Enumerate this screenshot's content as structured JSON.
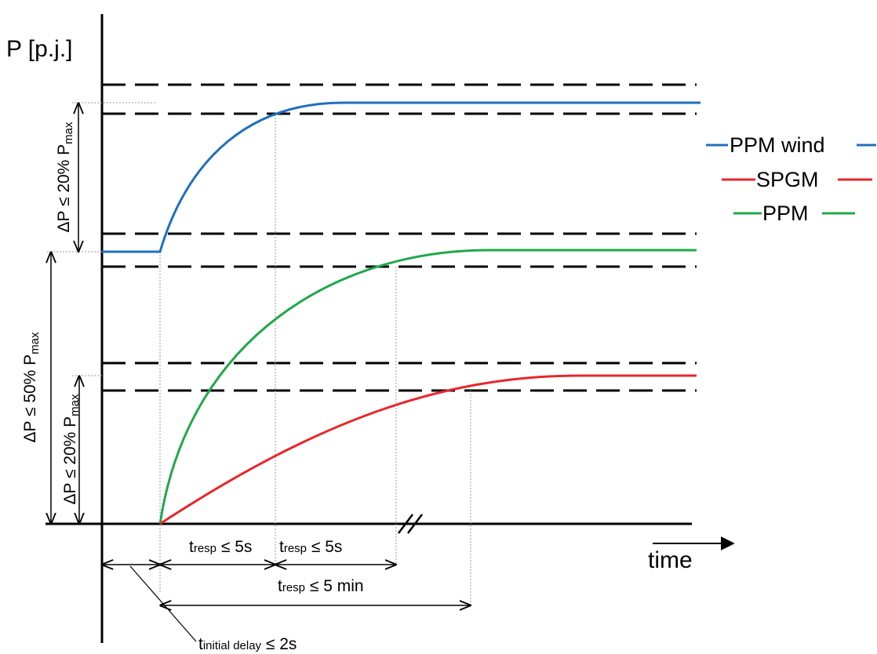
{
  "y_axis_label": "P [p.j.]",
  "x_axis_label": "time",
  "legend": [
    {
      "label": "PPM wind",
      "color": "#1f6fbf"
    },
    {
      "label": "SPGM",
      "color": "#e8262a"
    },
    {
      "label": "PPM",
      "color": "#20a84a"
    }
  ],
  "dp_labels": {
    "wind": {
      "main": "ΔP ≤ 20% P",
      "sub": "max"
    },
    "total": {
      "main": "ΔP ≤ 50% P",
      "sub": "max"
    },
    "lower": {
      "main": "ΔP ≤ 20% P",
      "sub": "max"
    }
  },
  "time_labels": {
    "resp1": {
      "t": "t",
      "sub": "resp",
      "rest": " ≤ 5s"
    },
    "resp2": {
      "t": "t",
      "sub": "resp",
      "rest": " ≤ 5s"
    },
    "resp3": {
      "t": "t",
      "sub": "resp",
      "rest": " ≤ 5 min"
    },
    "initial": {
      "t": "t",
      "sub": "initial delay",
      "rest": " ≤ 2s"
    }
  }
}
